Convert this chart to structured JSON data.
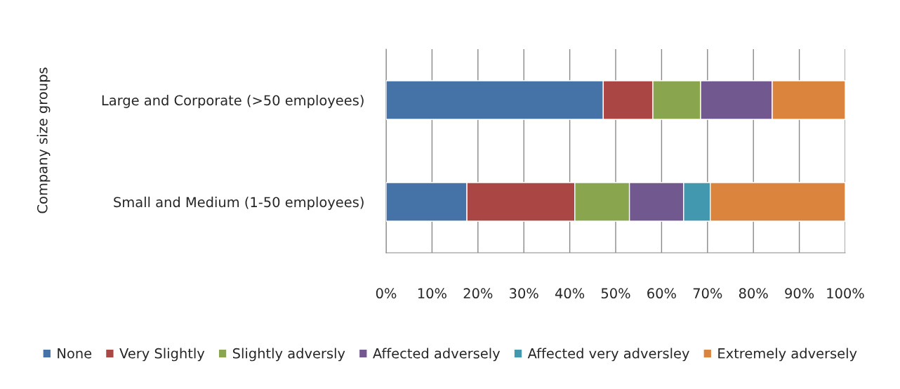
{
  "chart_data": {
    "type": "bar",
    "orientation": "horizontal",
    "stacked": true,
    "ylabel": "Company size groups",
    "categories": [
      "Large and Corporate (>50 employees)",
      "Small and Medium (1-50 employees)"
    ],
    "series": [
      {
        "name": "None",
        "color": "#4572a7",
        "values": [
          47.3,
          17.6
        ]
      },
      {
        "name": "Very Slightly",
        "color": "#aa4643",
        "values": [
          10.8,
          23.5
        ]
      },
      {
        "name": "Slightly adversly",
        "color": "#89a54e",
        "values": [
          10.4,
          11.9
        ]
      },
      {
        "name": "Affected adversely",
        "color": "#71588f",
        "values": [
          15.6,
          11.8
        ]
      },
      {
        "name": "Affected very adversley",
        "color": "#4198af",
        "values": [
          0,
          5.8
        ]
      },
      {
        "name": "Extremely adversely",
        "color": "#db843d",
        "values": [
          15.9,
          29.4
        ]
      }
    ],
    "xlim": [
      0,
      100
    ],
    "xticks": [
      {
        "value": 0,
        "label": "0%"
      },
      {
        "value": 10,
        "label": "10%"
      },
      {
        "value": 20,
        "label": "20%"
      },
      {
        "value": 30,
        "label": "30%"
      },
      {
        "value": 40,
        "label": "40%"
      },
      {
        "value": 50,
        "label": "50%"
      },
      {
        "value": 60,
        "label": "60%"
      },
      {
        "value": 70,
        "label": "70%"
      },
      {
        "value": 80,
        "label": "80%"
      },
      {
        "value": 90,
        "label": "90%"
      },
      {
        "value": 100,
        "label": "100%"
      }
    ],
    "grid": "x",
    "legend": "bottom"
  }
}
